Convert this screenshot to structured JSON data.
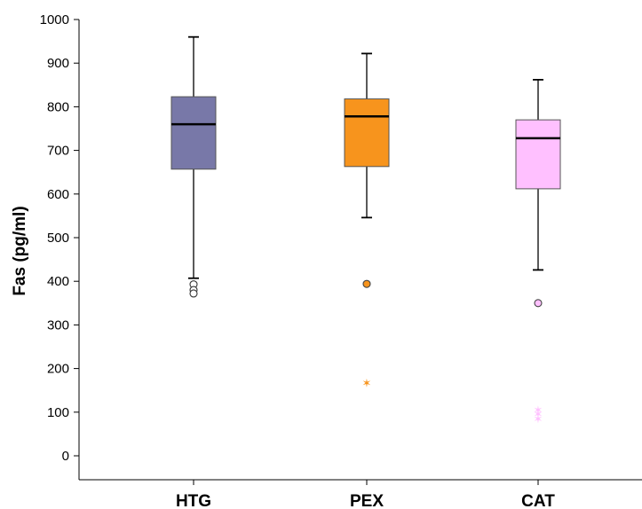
{
  "chart_data": {
    "type": "box",
    "ylabel": "Fas (pg/ml)",
    "xlabel": "",
    "ylim": [
      0,
      1000
    ],
    "yticks": [
      "0",
      "100",
      "200",
      "300",
      "400",
      "500",
      "600",
      "700",
      "800",
      "900",
      "1000"
    ],
    "grid": false,
    "categories": [
      "HTG",
      "PEX",
      "CAT"
    ],
    "boxes": [
      {
        "category": "HTG",
        "color": "#7878a8",
        "whisker_low": 407,
        "q1": 657,
        "median": 760,
        "q3": 823,
        "whisker_high": 960,
        "outliers": [
          393,
          380,
          372
        ],
        "extremes": []
      },
      {
        "category": "PEX",
        "color": "#f7941d",
        "whisker_low": 546,
        "q1": 663,
        "median": 778,
        "q3": 818,
        "whisker_high": 922,
        "outliers": [
          394
        ],
        "extremes": [
          168
        ]
      },
      {
        "category": "CAT",
        "color": "#ffc0ff",
        "whisker_low": 426,
        "q1": 612,
        "median": 728,
        "q3": 770,
        "whisker_high": 862,
        "outliers": [
          350
        ],
        "extremes": [
          106,
          97,
          85
        ]
      }
    ]
  }
}
